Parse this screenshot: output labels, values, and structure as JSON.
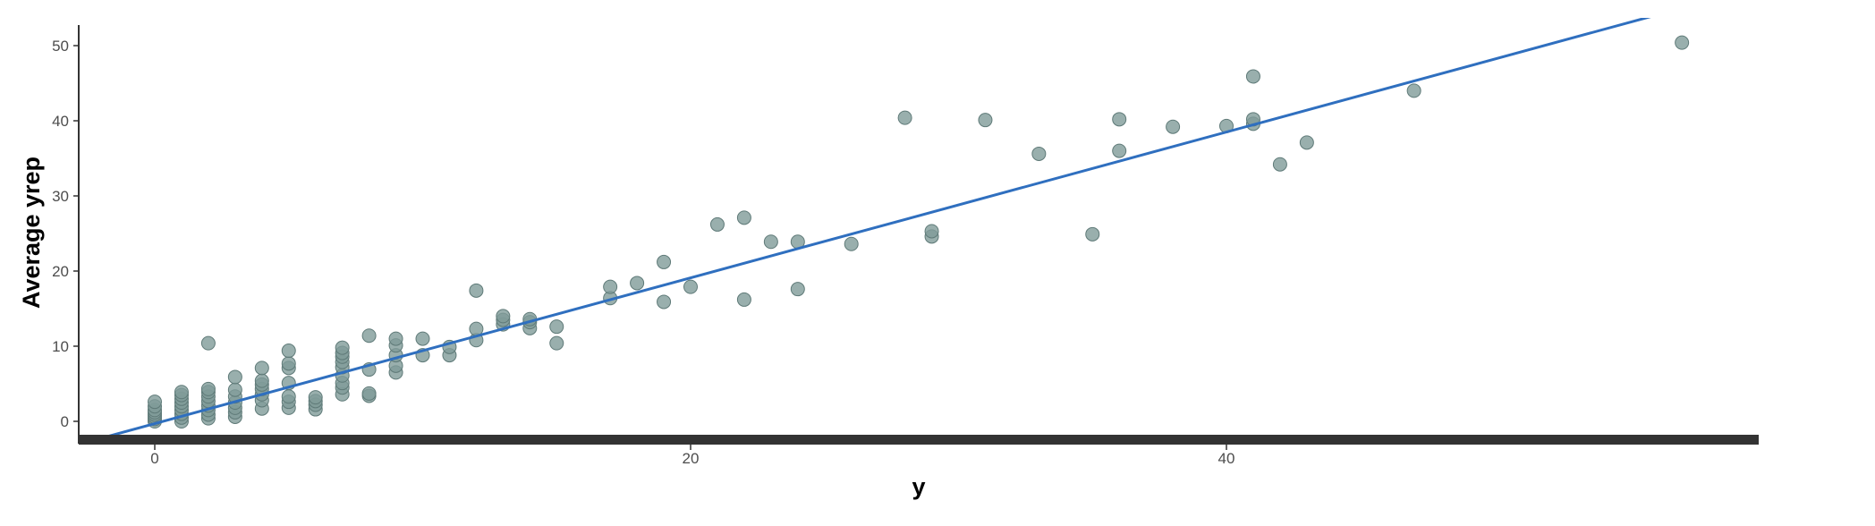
{
  "chart_data": {
    "type": "scatter",
    "xlabel": "y",
    "ylabel": "Average yrep",
    "xlim": [
      -3,
      60
    ],
    "ylim": [
      -2.5,
      52.5
    ],
    "x_ticks": [
      0,
      20,
      40
    ],
    "y_ticks": [
      0,
      10,
      20,
      30,
      40,
      50
    ],
    "point_color": "#7f9b99",
    "point_stroke": "#5f7a78",
    "line_color": "#2f6fbf",
    "axis_color": "#333333",
    "fit_line": {
      "slope": 0.97,
      "intercept": -0.3
    },
    "points": [
      {
        "x": 0,
        "y": 0.0
      },
      {
        "x": 0,
        "y": 0.3
      },
      {
        "x": 0,
        "y": 0.6
      },
      {
        "x": 0,
        "y": 0.9
      },
      {
        "x": 0,
        "y": 1.2
      },
      {
        "x": 0,
        "y": 1.5
      },
      {
        "x": 0,
        "y": 2.0
      },
      {
        "x": 0,
        "y": 2.6
      },
      {
        "x": 1,
        "y": 0.0
      },
      {
        "x": 1,
        "y": 0.5
      },
      {
        "x": 1,
        "y": 1.0
      },
      {
        "x": 1,
        "y": 1.5
      },
      {
        "x": 1,
        "y": 2.0
      },
      {
        "x": 1,
        "y": 2.5
      },
      {
        "x": 1,
        "y": 3.0
      },
      {
        "x": 1,
        "y": 3.5
      },
      {
        "x": 1,
        "y": 3.9
      },
      {
        "x": 2,
        "y": 0.4
      },
      {
        "x": 2,
        "y": 0.9
      },
      {
        "x": 2,
        "y": 1.5
      },
      {
        "x": 2,
        "y": 2.1
      },
      {
        "x": 2,
        "y": 2.7
      },
      {
        "x": 2,
        "y": 3.3
      },
      {
        "x": 2,
        "y": 3.9
      },
      {
        "x": 2,
        "y": 4.3
      },
      {
        "x": 2,
        "y": 10.4
      },
      {
        "x": 3,
        "y": 0.6
      },
      {
        "x": 3,
        "y": 1.2
      },
      {
        "x": 3,
        "y": 1.8
      },
      {
        "x": 3,
        "y": 2.5
      },
      {
        "x": 3,
        "y": 3.3
      },
      {
        "x": 3,
        "y": 4.2
      },
      {
        "x": 3,
        "y": 5.9
      },
      {
        "x": 4,
        "y": 1.7
      },
      {
        "x": 4,
        "y": 2.8
      },
      {
        "x": 4,
        "y": 3.6
      },
      {
        "x": 4,
        "y": 4.3
      },
      {
        "x": 4,
        "y": 4.9
      },
      {
        "x": 4,
        "y": 5.4
      },
      {
        "x": 4,
        "y": 7.1
      },
      {
        "x": 5,
        "y": 1.8
      },
      {
        "x": 5,
        "y": 2.6
      },
      {
        "x": 5,
        "y": 3.3
      },
      {
        "x": 5,
        "y": 5.1
      },
      {
        "x": 5,
        "y": 7.1
      },
      {
        "x": 5,
        "y": 7.7
      },
      {
        "x": 5,
        "y": 9.4
      },
      {
        "x": 6,
        "y": 1.6
      },
      {
        "x": 6,
        "y": 2.2
      },
      {
        "x": 6,
        "y": 2.7
      },
      {
        "x": 6,
        "y": 3.2
      },
      {
        "x": 7,
        "y": 3.6
      },
      {
        "x": 7,
        "y": 4.5
      },
      {
        "x": 7,
        "y": 5.1
      },
      {
        "x": 7,
        "y": 6.1
      },
      {
        "x": 7,
        "y": 7.2
      },
      {
        "x": 7,
        "y": 7.9
      },
      {
        "x": 7,
        "y": 8.6
      },
      {
        "x": 7,
        "y": 9.1
      },
      {
        "x": 7,
        "y": 9.8
      },
      {
        "x": 8,
        "y": 3.4
      },
      {
        "x": 8,
        "y": 3.7
      },
      {
        "x": 8,
        "y": 6.9
      },
      {
        "x": 8,
        "y": 11.4
      },
      {
        "x": 9,
        "y": 6.5
      },
      {
        "x": 9,
        "y": 7.4
      },
      {
        "x": 9,
        "y": 8.8
      },
      {
        "x": 9,
        "y": 10.1
      },
      {
        "x": 9,
        "y": 11.0
      },
      {
        "x": 10,
        "y": 8.8
      },
      {
        "x": 10,
        "y": 11.0
      },
      {
        "x": 11,
        "y": 8.8
      },
      {
        "x": 11,
        "y": 9.9
      },
      {
        "x": 12,
        "y": 10.8
      },
      {
        "x": 12,
        "y": 12.3
      },
      {
        "x": 12,
        "y": 17.4
      },
      {
        "x": 13,
        "y": 12.9
      },
      {
        "x": 13,
        "y": 13.5
      },
      {
        "x": 13,
        "y": 14.0
      },
      {
        "x": 14,
        "y": 12.4
      },
      {
        "x": 14,
        "y": 13.2
      },
      {
        "x": 14,
        "y": 13.6
      },
      {
        "x": 15,
        "y": 10.4
      },
      {
        "x": 15,
        "y": 12.6
      },
      {
        "x": 17,
        "y": 16.4
      },
      {
        "x": 17,
        "y": 17.9
      },
      {
        "x": 18,
        "y": 18.4
      },
      {
        "x": 19,
        "y": 15.9
      },
      {
        "x": 19,
        "y": 21.2
      },
      {
        "x": 20,
        "y": 17.9
      },
      {
        "x": 21,
        "y": 26.2
      },
      {
        "x": 22,
        "y": 16.2
      },
      {
        "x": 22,
        "y": 27.1
      },
      {
        "x": 23,
        "y": 23.9
      },
      {
        "x": 24,
        "y": 17.6
      },
      {
        "x": 24,
        "y": 23.9
      },
      {
        "x": 26,
        "y": 23.6
      },
      {
        "x": 28,
        "y": 40.4
      },
      {
        "x": 29,
        "y": 24.6
      },
      {
        "x": 29,
        "y": 25.3
      },
      {
        "x": 31,
        "y": 40.1
      },
      {
        "x": 33,
        "y": 35.6
      },
      {
        "x": 35,
        "y": 24.9
      },
      {
        "x": 36,
        "y": 36.0
      },
      {
        "x": 36,
        "y": 40.2
      },
      {
        "x": 38,
        "y": 39.2
      },
      {
        "x": 40,
        "y": 39.3
      },
      {
        "x": 41,
        "y": 39.6
      },
      {
        "x": 41,
        "y": 40.2
      },
      {
        "x": 41,
        "y": 45.9
      },
      {
        "x": 42,
        "y": 34.2
      },
      {
        "x": 43,
        "y": 37.1
      },
      {
        "x": 47,
        "y": 44.0
      },
      {
        "x": 57,
        "y": 50.4
      }
    ]
  }
}
